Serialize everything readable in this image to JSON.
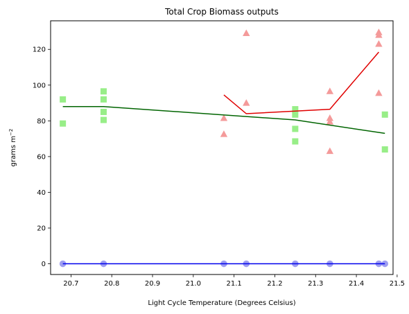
{
  "chart_data": {
    "type": "scatter",
    "title": "Total Crop Biomass outputs",
    "xlabel": "Light Cycle Temperature (Degrees Celsius)",
    "ylabel_main": "grams m",
    "ylabel_sup": "−2",
    "xlim": [
      20.65,
      21.49
    ],
    "ylim": [
      -6,
      136
    ],
    "xticks": [
      20.7,
      20.8,
      20.9,
      21.0,
      21.1,
      21.2,
      21.3,
      21.4,
      21.5
    ],
    "xtick_labels": [
      "20.7",
      "20.8",
      "20.9",
      "21.0",
      "21.1",
      "21.2",
      "21.3",
      "21.4",
      "21.5"
    ],
    "yticks": [
      0,
      20,
      40,
      60,
      80,
      100,
      120
    ],
    "ytick_labels": [
      "0",
      "20",
      "40",
      "60",
      "80",
      "100",
      "120"
    ],
    "grid": false,
    "series": [
      {
        "marker": "triangle",
        "color": "#f49a9a",
        "line_color": "#e00000",
        "points": [
          [
            21.075,
            72.5
          ],
          [
            21.075,
            81.5
          ],
          [
            21.13,
            90.0
          ],
          [
            21.13,
            129.0
          ],
          [
            21.335,
            63.0
          ],
          [
            21.335,
            79.5
          ],
          [
            21.335,
            81.5
          ],
          [
            21.335,
            96.5
          ],
          [
            21.455,
            95.5
          ],
          [
            21.455,
            123.0
          ],
          [
            21.455,
            128.0
          ],
          [
            21.455,
            129.5
          ]
        ],
        "line": [
          [
            21.075,
            94.5
          ],
          [
            21.13,
            84.0
          ],
          [
            21.335,
            86.5
          ],
          [
            21.455,
            118.5
          ]
        ]
      },
      {
        "marker": "square",
        "color": "#98ee88",
        "line_color": "#006400",
        "points": [
          [
            20.68,
            78.5
          ],
          [
            20.68,
            92.0
          ],
          [
            20.78,
            80.5
          ],
          [
            20.78,
            85.0
          ],
          [
            20.78,
            92.0
          ],
          [
            20.78,
            96.5
          ],
          [
            21.25,
            68.5
          ],
          [
            21.25,
            75.5
          ],
          [
            21.25,
            83.5
          ],
          [
            21.25,
            86.5
          ],
          [
            21.47,
            64.0
          ],
          [
            21.47,
            83.5
          ]
        ],
        "line": [
          [
            20.68,
            88.0
          ],
          [
            20.78,
            88.0
          ],
          [
            21.25,
            80.5
          ],
          [
            21.47,
            73.0
          ]
        ]
      },
      {
        "marker": "circle",
        "color": "#9f9ff0",
        "line_color": "#0000ee",
        "points": [
          [
            20.68,
            0
          ],
          [
            20.78,
            0
          ],
          [
            21.075,
            0
          ],
          [
            21.13,
            0
          ],
          [
            21.25,
            0
          ],
          [
            21.335,
            0
          ],
          [
            21.455,
            0
          ],
          [
            21.47,
            0
          ]
        ],
        "line": [
          [
            20.68,
            0
          ],
          [
            21.47,
            0
          ]
        ]
      }
    ]
  }
}
